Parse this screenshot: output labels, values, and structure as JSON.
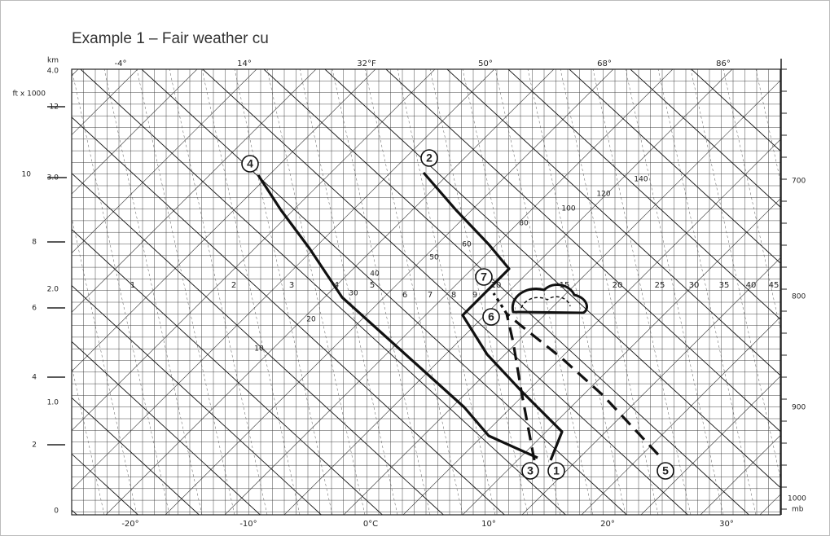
{
  "title": "Example 1 – Fair weather cu",
  "top_axis": [
    "-4°",
    "14°",
    "32°F",
    "50°",
    "68°",
    "86°"
  ],
  "bottom_axis": [
    "-20°",
    "-10°",
    "0°C",
    "10°",
    "20°",
    "30°"
  ],
  "left_axis": [
    "km",
    "4.0",
    "ft x 1000",
    "12",
    "10",
    "3.0",
    "8",
    "2.0",
    "6",
    "4",
    "1.0",
    "2",
    "0"
  ],
  "right_axis": [
    "700",
    "800",
    "900",
    "1000",
    "mb"
  ],
  "mixing_ratio_labels": [
    "1",
    "2",
    "3",
    "4",
    "5",
    "6",
    "7",
    "8",
    "9",
    "10",
    "15",
    "20",
    "25",
    "30",
    "35",
    "40",
    "45"
  ],
  "line_labels": [
    "10",
    "20",
    "30",
    "40",
    "50",
    "60",
    "80",
    "100",
    "120",
    "140"
  ],
  "markers": [
    "1",
    "2",
    "3",
    "4",
    "5",
    "6",
    "7"
  ]
}
